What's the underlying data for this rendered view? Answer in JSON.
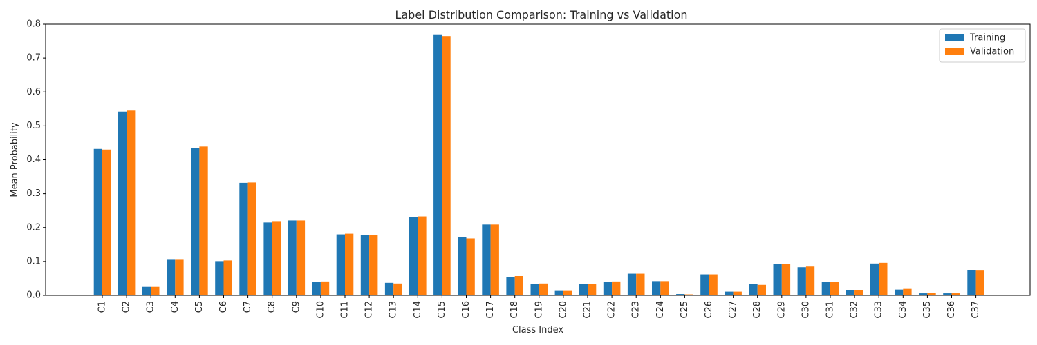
{
  "chart_data": {
    "type": "bar",
    "title": "Label Distribution Comparison: Training vs Validation",
    "xlabel": "Class Index",
    "ylabel": "Mean Probability",
    "ylim": [
      0,
      0.8
    ],
    "yticks": [
      "0.0",
      "0.1",
      "0.2",
      "0.3",
      "0.4",
      "0.5",
      "0.6",
      "0.7",
      "0.8"
    ],
    "grid": false,
    "legend_position": "top-right",
    "categories": [
      "C1",
      "C2",
      "C3",
      "C4",
      "C5",
      "C6",
      "C7",
      "C8",
      "C9",
      "C10",
      "C11",
      "C12",
      "C13",
      "C14",
      "C15",
      "C16",
      "C17",
      "C18",
      "C19",
      "C20",
      "C21",
      "C22",
      "C23",
      "C24",
      "C25",
      "C26",
      "C27",
      "C28",
      "C29",
      "C30",
      "C31",
      "C32",
      "C33",
      "C34",
      "C35",
      "C36",
      "C37"
    ],
    "series": [
      {
        "name": "Training",
        "color": "#1f77b4",
        "values": [
          0.432,
          0.542,
          0.025,
          0.105,
          0.435,
          0.101,
          0.332,
          0.215,
          0.221,
          0.04,
          0.18,
          0.178,
          0.037,
          0.231,
          0.768,
          0.171,
          0.209,
          0.054,
          0.034,
          0.013,
          0.033,
          0.039,
          0.064,
          0.042,
          0.004,
          0.062,
          0.011,
          0.033,
          0.092,
          0.083,
          0.04,
          0.015,
          0.094,
          0.017,
          0.006,
          0.006,
          0.075
        ]
      },
      {
        "name": "Validation",
        "color": "#ff7f0e",
        "values": [
          0.43,
          0.545,
          0.025,
          0.105,
          0.439,
          0.103,
          0.333,
          0.217,
          0.221,
          0.041,
          0.182,
          0.178,
          0.035,
          0.233,
          0.765,
          0.168,
          0.209,
          0.057,
          0.035,
          0.013,
          0.033,
          0.041,
          0.064,
          0.042,
          0.003,
          0.062,
          0.011,
          0.031,
          0.092,
          0.085,
          0.04,
          0.015,
          0.096,
          0.019,
          0.008,
          0.006,
          0.073
        ]
      }
    ]
  }
}
